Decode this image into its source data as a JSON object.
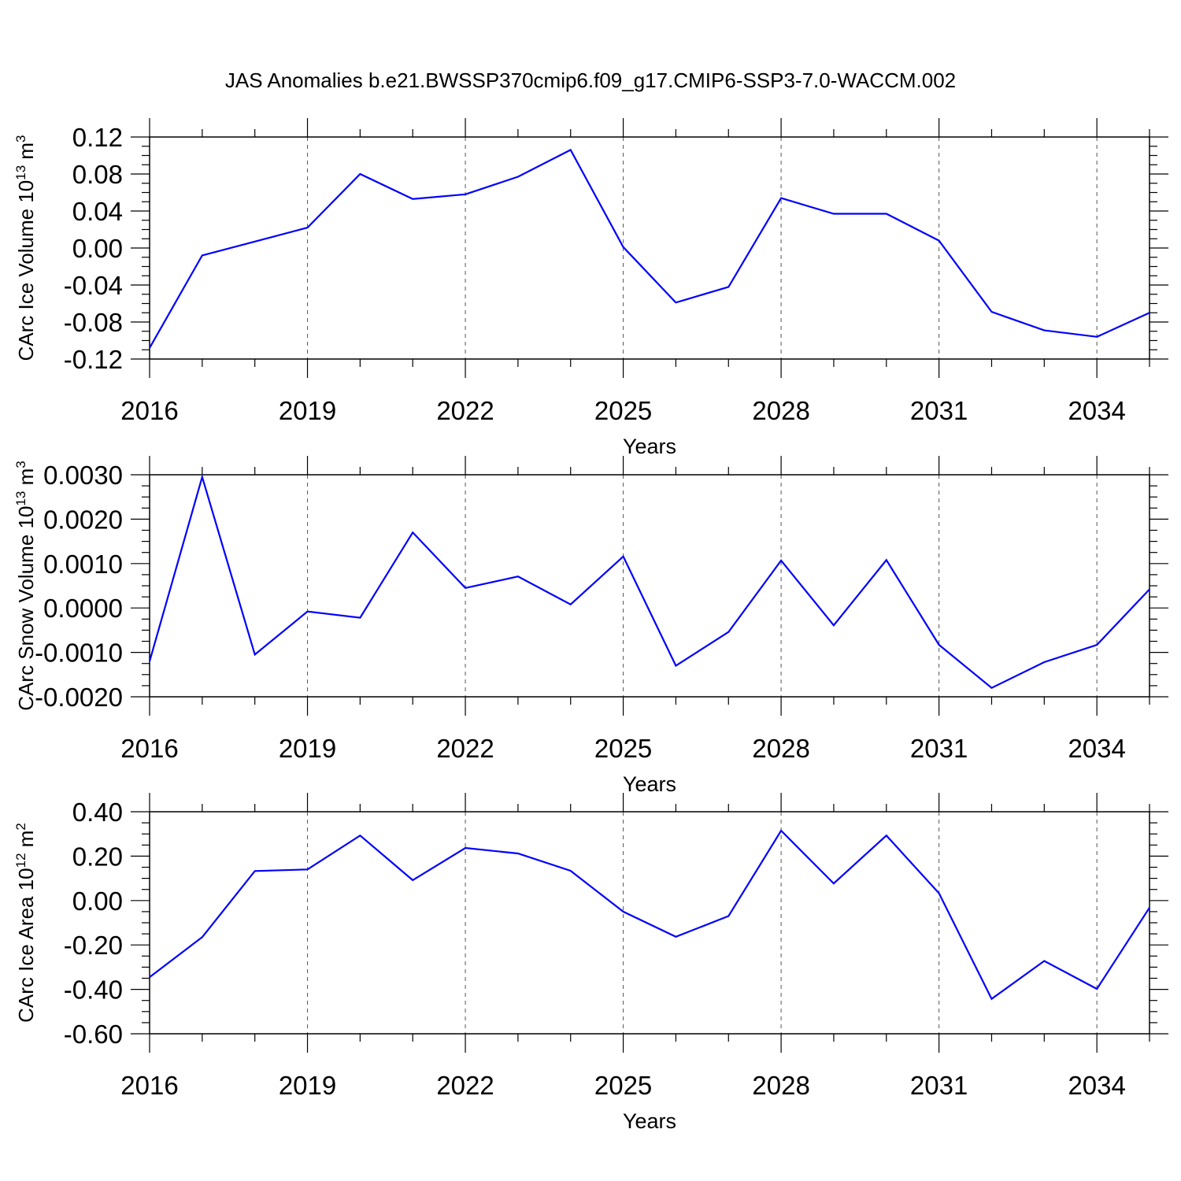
{
  "figure": {
    "title": "JAS Anomalies b.e21.BWSSP370cmip6.f09_g17.CMIP6-SSP3-7.0-WACCM.002",
    "line_color": "#0000ff",
    "grid": "vertical dashed lines at major year ticks"
  },
  "chart_data": [
    {
      "type": "line",
      "title": "",
      "xlabel": "Years",
      "ylabel_main": "CArc Ice Volume 10",
      "ylabel_sup": "13",
      "ylabel_unit": " m",
      "ylabel_unit_sup": "3",
      "xlim": [
        2016,
        2035
      ],
      "ylim": [
        -0.12,
        0.12
      ],
      "x_ticks": [
        2016,
        2019,
        2022,
        2025,
        2028,
        2031,
        2034
      ],
      "x_tick_labels": [
        "2016",
        "2019",
        "2022",
        "2025",
        "2028",
        "2031",
        "2034"
      ],
      "y_ticks": [
        -0.12,
        -0.08,
        -0.04,
        0.0,
        0.04,
        0.08,
        0.12
      ],
      "y_tick_labels": [
        "-0.12",
        "-0.08",
        "-0.04",
        "0.00",
        "0.04",
        "0.08",
        "0.12"
      ],
      "series": [
        {
          "x": [
            2016,
            2017,
            2018,
            2019,
            2020,
            2021,
            2022,
            2023,
            2024,
            2025,
            2026,
            2027,
            2028,
            2029,
            2030,
            2031,
            2032,
            2033,
            2034,
            2035
          ],
          "values": [
            -0.108,
            -0.008,
            0.007,
            0.022,
            0.08,
            0.053,
            0.058,
            0.077,
            0.106,
            0.001,
            -0.059,
            -0.042,
            0.054,
            0.037,
            0.037,
            0.008,
            -0.069,
            -0.089,
            -0.096,
            -0.07
          ]
        }
      ]
    },
    {
      "type": "line",
      "title": "",
      "xlabel": "Years",
      "ylabel_main": "CArc Snow Volume 10",
      "ylabel_sup": "13",
      "ylabel_unit": " m",
      "ylabel_unit_sup": "3",
      "xlim": [
        2016,
        2035
      ],
      "ylim": [
        -0.002,
        0.003
      ],
      "x_ticks": [
        2016,
        2019,
        2022,
        2025,
        2028,
        2031,
        2034
      ],
      "x_tick_labels": [
        "2016",
        "2019",
        "2022",
        "2025",
        "2028",
        "2031",
        "2034"
      ],
      "y_ticks": [
        -0.002,
        -0.001,
        0.0,
        0.001,
        0.002,
        0.003
      ],
      "y_tick_labels": [
        "-0.0020",
        "-0.0010",
        "0.0000",
        "0.0010",
        "0.0020",
        "0.0030"
      ],
      "series": [
        {
          "x": [
            2016,
            2017,
            2018,
            2019,
            2020,
            2021,
            2022,
            2023,
            2024,
            2025,
            2026,
            2027,
            2028,
            2029,
            2030,
            2031,
            2032,
            2033,
            2034,
            2035
          ],
          "values": [
            -0.0012,
            0.00295,
            -0.00105,
            -8e-05,
            -0.00022,
            0.0017,
            0.00045,
            0.00071,
            8e-05,
            0.00116,
            -0.0013,
            -0.00054,
            0.00107,
            -0.00039,
            0.00108,
            -0.00083,
            -0.0018,
            -0.00122,
            -0.00083,
            0.00042
          ]
        }
      ]
    },
    {
      "type": "line",
      "title": "",
      "xlabel": "Years",
      "ylabel_main": "CArc Ice Area 10",
      "ylabel_sup": "12",
      "ylabel_unit": " m",
      "ylabel_unit_sup": "2",
      "xlim": [
        2016,
        2035
      ],
      "ylim": [
        -0.6,
        0.4
      ],
      "x_ticks": [
        2016,
        2019,
        2022,
        2025,
        2028,
        2031,
        2034
      ],
      "x_tick_labels": [
        "2016",
        "2019",
        "2022",
        "2025",
        "2028",
        "2031",
        "2034"
      ],
      "y_ticks": [
        -0.6,
        -0.4,
        -0.2,
        0.0,
        0.2,
        0.4
      ],
      "y_tick_labels": [
        "-0.60",
        "-0.40",
        "-0.20",
        "0.00",
        "0.20",
        "0.40"
      ],
      "series": [
        {
          "x": [
            2016,
            2017,
            2018,
            2019,
            2020,
            2021,
            2022,
            2023,
            2024,
            2025,
            2026,
            2027,
            2028,
            2029,
            2030,
            2031,
            2032,
            2033,
            2034,
            2035
          ],
          "values": [
            -0.345,
            -0.165,
            0.133,
            0.14,
            0.293,
            0.092,
            0.237,
            0.212,
            0.134,
            -0.05,
            -0.163,
            -0.07,
            0.315,
            0.077,
            0.293,
            0.033,
            -0.443,
            -0.272,
            -0.398,
            -0.032
          ]
        }
      ]
    }
  ]
}
